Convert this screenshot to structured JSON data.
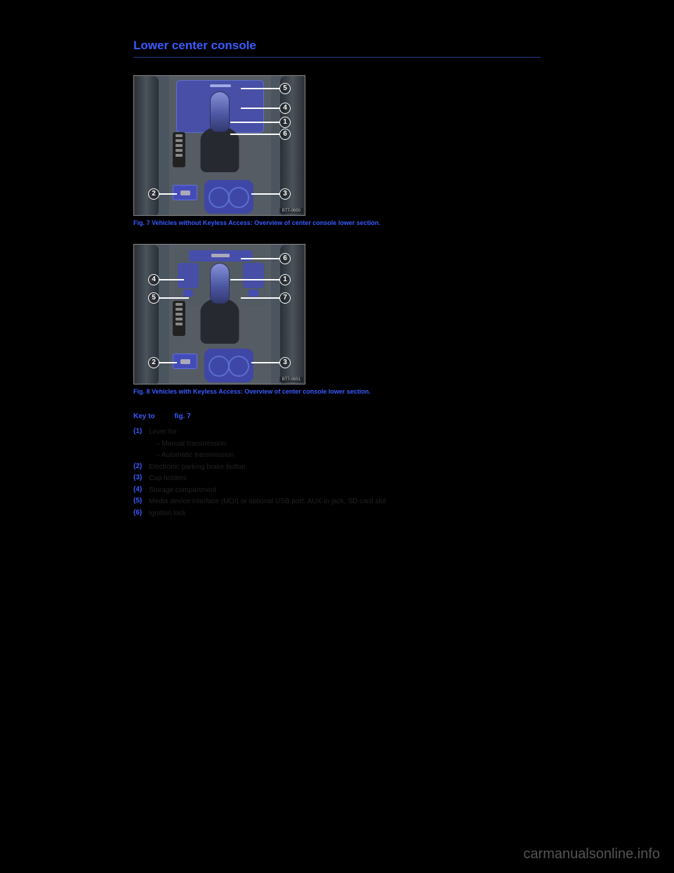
{
  "title": "Lower center console",
  "fig7": {
    "caption": "Fig. 7 Vehicles without Keyless Access: Overview of center console lower section.",
    "tag": "BTT-0650",
    "callouts": [
      "1",
      "2",
      "3",
      "4",
      "5",
      "6"
    ]
  },
  "fig8": {
    "caption": "Fig. 8 Vehicles with Keyless Access: Overview of center console lower section.",
    "tag": "BTT-0651",
    "callouts": [
      "1",
      "2",
      "3",
      "4",
      "5",
      "6",
      "7"
    ]
  },
  "key": {
    "header_prefix": "Key to",
    "header_ref": "fig. 7",
    "items": [
      {
        "n": "(1)",
        "desc": "Lever for:",
        "subs": [
          "– Manual transmission",
          "– Automatic transmission"
        ]
      },
      {
        "n": "(2)",
        "desc": "Electronic parking brake button",
        "subs": []
      },
      {
        "n": "(3)",
        "desc": "Cup holders",
        "subs": []
      },
      {
        "n": "(4)",
        "desc": "Storage compartment",
        "subs": []
      },
      {
        "n": "(5)",
        "desc": "Media device interface (MDI) or optional USB port, AUX-in jack, SD card slot",
        "subs": []
      },
      {
        "n": "(6)",
        "desc": "Ignition lock",
        "subs": []
      }
    ]
  },
  "watermark": "carmanualsonline.info"
}
